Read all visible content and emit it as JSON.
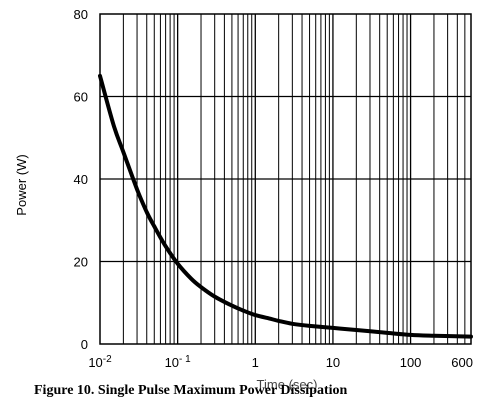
{
  "chart_data": {
    "type": "line",
    "title": "",
    "caption": "Figure 10. Single Pulse Maximum Power Dissipation",
    "xlabel": "Time (sec)",
    "ylabel": "Power  (W)",
    "xscale": "log",
    "xlim": [
      0.01,
      600
    ],
    "ylim": [
      0,
      80
    ],
    "grid": true,
    "x_ticks": [
      {
        "value": 0.01,
        "base": "10",
        "exp": "-2"
      },
      {
        "value": 0.1,
        "base": "10",
        "exp": "- 1"
      },
      {
        "value": 1,
        "base": "1",
        "exp": ""
      },
      {
        "value": 10,
        "base": "10",
        "exp": ""
      },
      {
        "value": 100,
        "base": "100",
        "exp": ""
      },
      {
        "value": 600,
        "base": "600",
        "exp": ""
      }
    ],
    "y_ticks": [
      {
        "value": 0,
        "label": "0"
      },
      {
        "value": 20,
        "label": "20"
      },
      {
        "value": 40,
        "label": "40"
      },
      {
        "value": 60,
        "label": "60"
      },
      {
        "value": 80,
        "label": "80"
      }
    ],
    "series": [
      {
        "x": [
          0.01,
          0.015,
          0.02,
          0.03,
          0.04,
          0.05,
          0.07,
          0.1,
          0.15,
          0.2,
          0.3,
          0.5,
          0.7,
          1,
          1.5,
          2,
          3,
          5,
          10,
          20,
          50,
          100,
          200,
          600
        ],
        "y": [
          65,
          53,
          46.5,
          37.5,
          32,
          28.5,
          23.7,
          19.5,
          15.8,
          13.8,
          11.5,
          9.3,
          8.1,
          7.0,
          6.2,
          5.6,
          4.9,
          4.4,
          3.9,
          3.4,
          2.7,
          2.2,
          2.0,
          1.8
        ]
      }
    ]
  }
}
